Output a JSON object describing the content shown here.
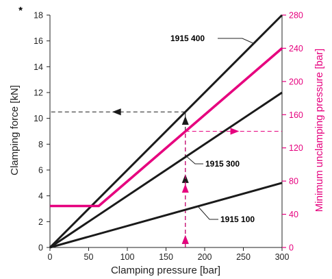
{
  "chart_data": {
    "type": "line",
    "xlabel": "Clamping pressure [bar]",
    "ylabel": "Clamping force [kN]",
    "ylabel_marker": "*",
    "y2label": "Minimum unclamping pressure [bar]",
    "xlim": [
      0,
      300
    ],
    "ylim": [
      0,
      18
    ],
    "y2lim": [
      0,
      280
    ],
    "x_ticks": [
      0,
      50,
      100,
      150,
      200,
      250,
      300
    ],
    "y_ticks": [
      0,
      2,
      4,
      6,
      8,
      10,
      12,
      14,
      16,
      18
    ],
    "y2_ticks": [
      0,
      40,
      80,
      120,
      160,
      200,
      240,
      280
    ],
    "grid": false,
    "colors": {
      "black": "#1a1a1a",
      "magenta": "#e6007e",
      "axis": "#222222"
    },
    "series": [
      {
        "name": "1915 400",
        "axis": "left",
        "color": "#1a1a1a",
        "x": [
          0,
          300
        ],
        "y": [
          0,
          18
        ]
      },
      {
        "name": "1915 300",
        "axis": "left",
        "color": "#1a1a1a",
        "x": [
          0,
          300
        ],
        "y": [
          0,
          12
        ]
      },
      {
        "name": "1915 100",
        "axis": "left",
        "color": "#1a1a1a",
        "x": [
          0,
          300
        ],
        "y": [
          0,
          5
        ]
      },
      {
        "axis": "right",
        "color": "#e6007e",
        "x": [
          0,
          63,
          300
        ],
        "y": [
          50,
          50,
          240
        ]
      }
    ],
    "annotations": [
      {
        "type": "guide",
        "color": "#1a1a1a",
        "from": [
          175,
          0
        ],
        "to": [
          175,
          10.5
        ],
        "arrow": "up"
      },
      {
        "type": "guide",
        "color": "#1a1a1a",
        "from": [
          175,
          10.5
        ],
        "to": [
          0,
          10.5
        ],
        "arrow": "left"
      },
      {
        "type": "guide",
        "color": "#e6007e",
        "from": [
          175,
          0
        ],
        "to": [
          175,
          140
        ],
        "axis": "right",
        "arrow": "up"
      },
      {
        "type": "guide",
        "color": "#e6007e",
        "from": [
          175,
          140
        ],
        "to": [
          300,
          140
        ],
        "axis": "right",
        "arrow": "right"
      }
    ]
  }
}
